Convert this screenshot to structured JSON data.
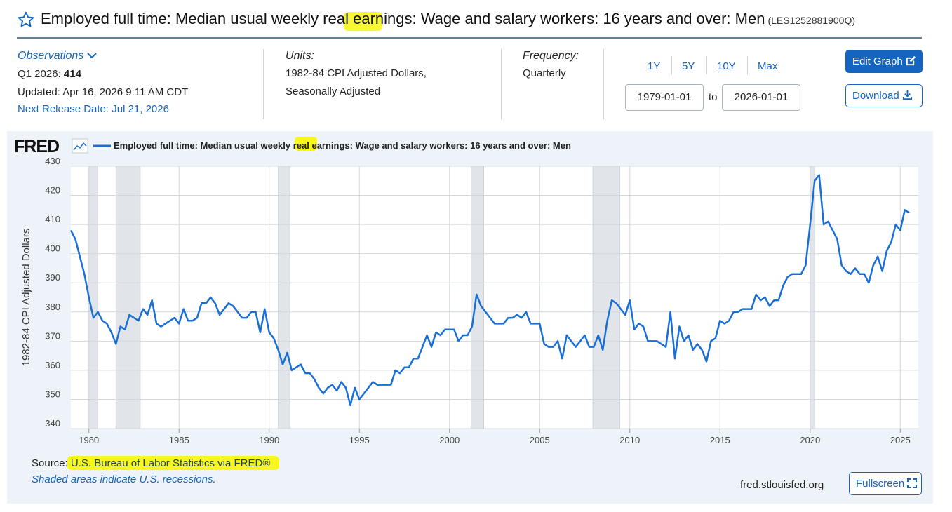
{
  "header": {
    "title": "Employed full time: Median usual weekly real earnings: Wage and salary workers: 16 years and over: Men",
    "series_id": "(LES1252881900Q)"
  },
  "observations": {
    "label": "Observations",
    "latest_period": "Q1 2026:",
    "latest_value": 414,
    "updated": "Updated: Apr 16, 2026 9:11 AM CDT",
    "next_release": "Next Release Date: Jul 21, 2026"
  },
  "units": {
    "label": "Units:",
    "lines": [
      "1982-84 CPI Adjusted Dollars,",
      "Seasonally Adjusted"
    ]
  },
  "frequency": {
    "label": "Frequency:",
    "value": "Quarterly"
  },
  "range_buttons": [
    "1Y",
    "5Y",
    "10Y",
    "Max"
  ],
  "date_range": {
    "start": "1979-01-01",
    "separator": "to",
    "end": "2026-01-01"
  },
  "buttons": {
    "edit": "Edit Graph",
    "download": "Download",
    "fullscreen": "Fullscreen"
  },
  "chart_data": {
    "type": "line",
    "logo": "FRED",
    "y_label": "1982-84 CPI Adjusted Dollars",
    "grid": true,
    "xlim": [
      1979,
      2026
    ],
    "xticks": [
      1980,
      1985,
      1990,
      1995,
      2000,
      2005,
      2010,
      2015,
      2020,
      2025
    ],
    "ylim": [
      340,
      430
    ],
    "yticks": [
      340,
      350,
      360,
      370,
      380,
      390,
      400,
      410,
      420,
      430
    ],
    "recessions": [
      [
        1980.0,
        1980.5
      ],
      [
        1981.5,
        1982.85
      ],
      [
        1990.5,
        1991.15
      ],
      [
        2001.2,
        2001.9
      ],
      [
        2007.95,
        2009.45
      ],
      [
        2020.0,
        2020.25
      ]
    ],
    "x": [
      1979,
      1979.25,
      1979.5,
      1979.75,
      1980,
      1980.25,
      1980.5,
      1980.75,
      1981,
      1981.25,
      1981.5,
      1981.75,
      1982,
      1982.25,
      1982.5,
      1982.75,
      1983,
      1983.25,
      1983.5,
      1983.75,
      1984,
      1984.25,
      1984.5,
      1984.75,
      1985,
      1985.25,
      1985.5,
      1985.75,
      1986,
      1986.25,
      1986.5,
      1986.75,
      1987,
      1987.25,
      1987.5,
      1987.75,
      1988,
      1988.25,
      1988.5,
      1988.75,
      1989,
      1989.25,
      1989.5,
      1989.75,
      1990,
      1990.25,
      1990.5,
      1990.75,
      1991,
      1991.25,
      1991.5,
      1991.75,
      1992,
      1992.25,
      1992.5,
      1992.75,
      1993,
      1993.25,
      1993.5,
      1993.75,
      1994,
      1994.25,
      1994.5,
      1994.75,
      1995,
      1995.25,
      1995.5,
      1995.75,
      1996,
      1996.25,
      1996.5,
      1996.75,
      1997,
      1997.25,
      1997.5,
      1997.75,
      1998,
      1998.25,
      1998.5,
      1998.75,
      1999,
      1999.25,
      1999.5,
      1999.75,
      2000,
      2000.25,
      2000.5,
      2000.75,
      2001,
      2001.25,
      2001.5,
      2001.75,
      2002,
      2002.25,
      2002.5,
      2002.75,
      2003,
      2003.25,
      2003.5,
      2003.75,
      2004,
      2004.25,
      2004.5,
      2004.75,
      2005,
      2005.25,
      2005.5,
      2005.75,
      2006,
      2006.25,
      2006.5,
      2006.75,
      2007,
      2007.25,
      2007.5,
      2007.75,
      2008,
      2008.25,
      2008.5,
      2008.75,
      2009,
      2009.25,
      2009.5,
      2009.75,
      2010,
      2010.25,
      2010.5,
      2010.75,
      2011,
      2011.25,
      2011.5,
      2011.75,
      2012,
      2012.25,
      2012.5,
      2012.75,
      2013,
      2013.25,
      2013.5,
      2013.75,
      2014,
      2014.25,
      2014.5,
      2014.75,
      2015,
      2015.25,
      2015.5,
      2015.75,
      2016,
      2016.25,
      2016.5,
      2016.75,
      2017,
      2017.25,
      2017.5,
      2017.75,
      2018,
      2018.25,
      2018.5,
      2018.75,
      2019,
      2019.25,
      2019.5,
      2019.75,
      2020,
      2020.25,
      2020.5,
      2020.75,
      2021,
      2021.25,
      2021.5,
      2021.75,
      2022,
      2022.25,
      2022.5,
      2022.75,
      2023,
      2023.25,
      2023.5,
      2023.75,
      2024,
      2024.25,
      2024.5,
      2024.75,
      2025,
      2025.25,
      2025.5
    ],
    "series": [
      {
        "name": "Employed full time: Median usual weekly real earnings: Wage and salary workers: 16 years and over: Men",
        "color": "#1a6fd6",
        "values": [
          408,
          405,
          399,
          393,
          385,
          378,
          380,
          377,
          376,
          373,
          369,
          375,
          374,
          379,
          378,
          377,
          381,
          379,
          384,
          376,
          375,
          376,
          377,
          378,
          376,
          381,
          377,
          377,
          378,
          383,
          383,
          385,
          383,
          379,
          381,
          383,
          382,
          380,
          378,
          378,
          380,
          380,
          373,
          381,
          373,
          371,
          367,
          362,
          366,
          360,
          361,
          362,
          359,
          359,
          357,
          354,
          352,
          354,
          355,
          353,
          356,
          354,
          348,
          354,
          350,
          352,
          354,
          356,
          355,
          355,
          355,
          355,
          360,
          359,
          361,
          361,
          364,
          364,
          368,
          372,
          368,
          373,
          372,
          374,
          374,
          374,
          370,
          372,
          372,
          375,
          386,
          382,
          380,
          378,
          376,
          376,
          376,
          378,
          378,
          379,
          378,
          380,
          376,
          376,
          376,
          369,
          368,
          368,
          370,
          364,
          372,
          370,
          368,
          370,
          372,
          368,
          368,
          372,
          367,
          377,
          384,
          383,
          381,
          379,
          384,
          374,
          376,
          375,
          370,
          370,
          370,
          369,
          368,
          380,
          364,
          375,
          370,
          372,
          367,
          369,
          367,
          363,
          370,
          371,
          377,
          376,
          377,
          380,
          380,
          381,
          381,
          381,
          386,
          384,
          385,
          382,
          384,
          384,
          389,
          392,
          393,
          393,
          393,
          396,
          410,
          425,
          427,
          410,
          411,
          408,
          405,
          396,
          394,
          393,
          395,
          393,
          393,
          390,
          396,
          399,
          394,
          401,
          404,
          410,
          408,
          415,
          414
        ]
      }
    ]
  },
  "footer": {
    "source_label": "Source:",
    "source": "U.S. Bureau of Labor Statistics via FRED®",
    "note": "Shaded areas indicate U.S. recessions.",
    "site": "fred.stlouisfed.org"
  }
}
